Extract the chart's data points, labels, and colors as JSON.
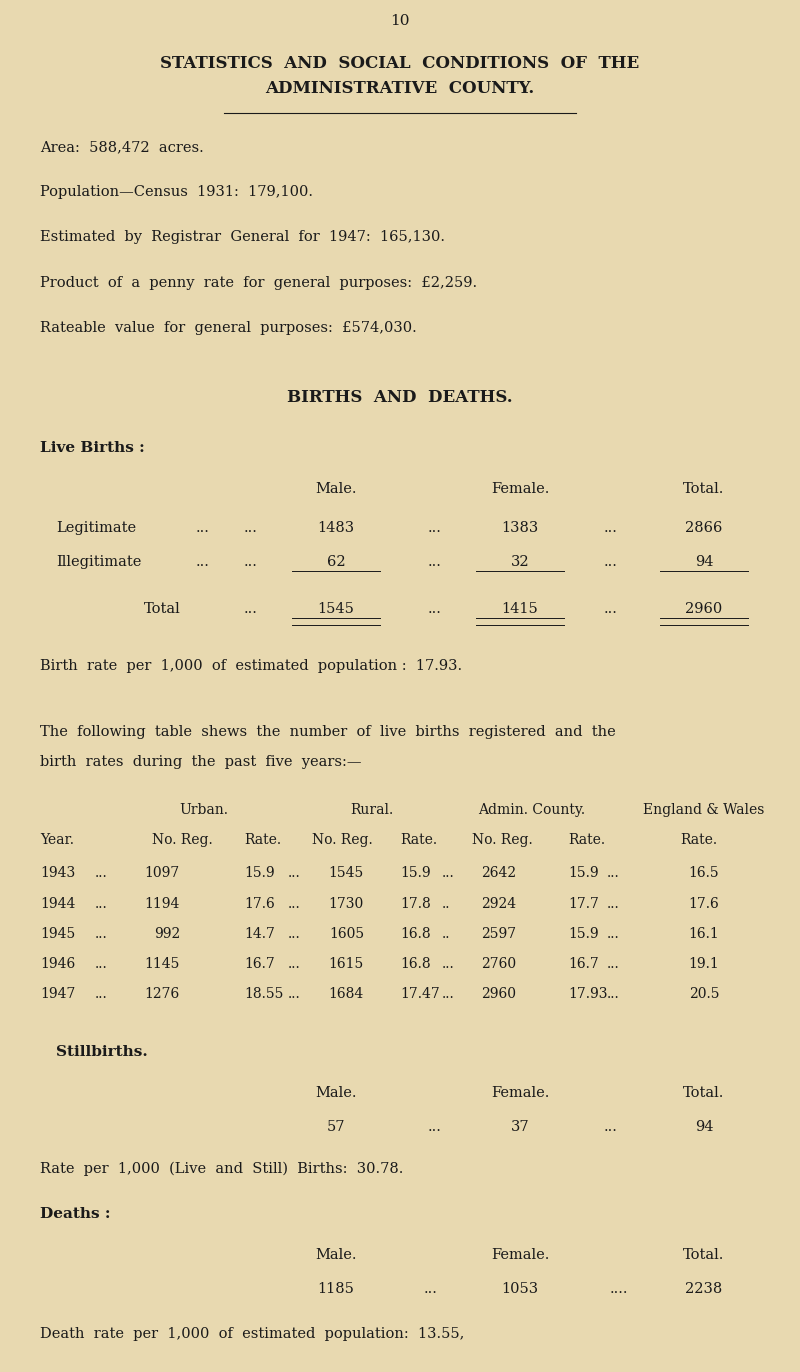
{
  "page_number": "10",
  "bg_color": "#e8d9b0",
  "title_line1": "STATISTICS  AND  SOCIAL  CONDITIONS  OF  THE",
  "title_line2": "ADMINISTRATIVE  COUNTY.",
  "area_text": "Area:  588,472  acres.",
  "pop_census_text": "Population—Census  1931:  179,100.",
  "pop_est_text": "Estimated  by  Registrar  General  for  1947:  165,130.",
  "penny_rate_text": "Product  of  a  penny  rate  for  general  purposes:  £2,259.",
  "rateable_text": "Rateable  value  for  general  purposes:  £574,030.",
  "births_deaths_header": "BIRTHS  AND  DEATHS.",
  "live_births_header": "Live Births :",
  "birth_rate_text": "Birth  rate  per  1,000  of  estimated  population :  17.93.",
  "following_table_text1": "The  following  table  shews  the  number  of  live  births  registered  and  the",
  "following_table_text2": "birth  rates  during  the  past  five  years:—",
  "table_data": [
    [
      "1943",
      "...",
      "1097",
      "15.9",
      "...",
      "1545",
      "15.9",
      "...",
      "2642",
      "15.9",
      "...",
      "16.5"
    ],
    [
      "1944",
      "...",
      "1194",
      "17.6",
      "...",
      "1730",
      "17.8",
      "..",
      "2924",
      "17.7",
      "...",
      "17.6"
    ],
    [
      "1945",
      "...",
      "992",
      "14.7",
      "...",
      "1605",
      "16.8",
      "..",
      "2597",
      "15.9",
      "...",
      "16.1"
    ],
    [
      "1946",
      "...",
      "1145",
      "16.7",
      "...",
      "1615",
      "16.8",
      "...",
      "2760",
      "16.7",
      "...",
      "19.1"
    ],
    [
      "1947",
      "...",
      "1276",
      "18.55",
      "...",
      "1684",
      "17.47",
      "...",
      "2960",
      "17.93",
      "...",
      "20.5"
    ]
  ],
  "stillbirths_header": "Stillbirths.",
  "still_rate_text": "Rate  per  1,000  (Live  and  Still)  Births:  30.78.",
  "deaths_header": "Deaths :",
  "death_rate_text": "Death  rate  per  1,000  of  estimated  population:  13.55,"
}
